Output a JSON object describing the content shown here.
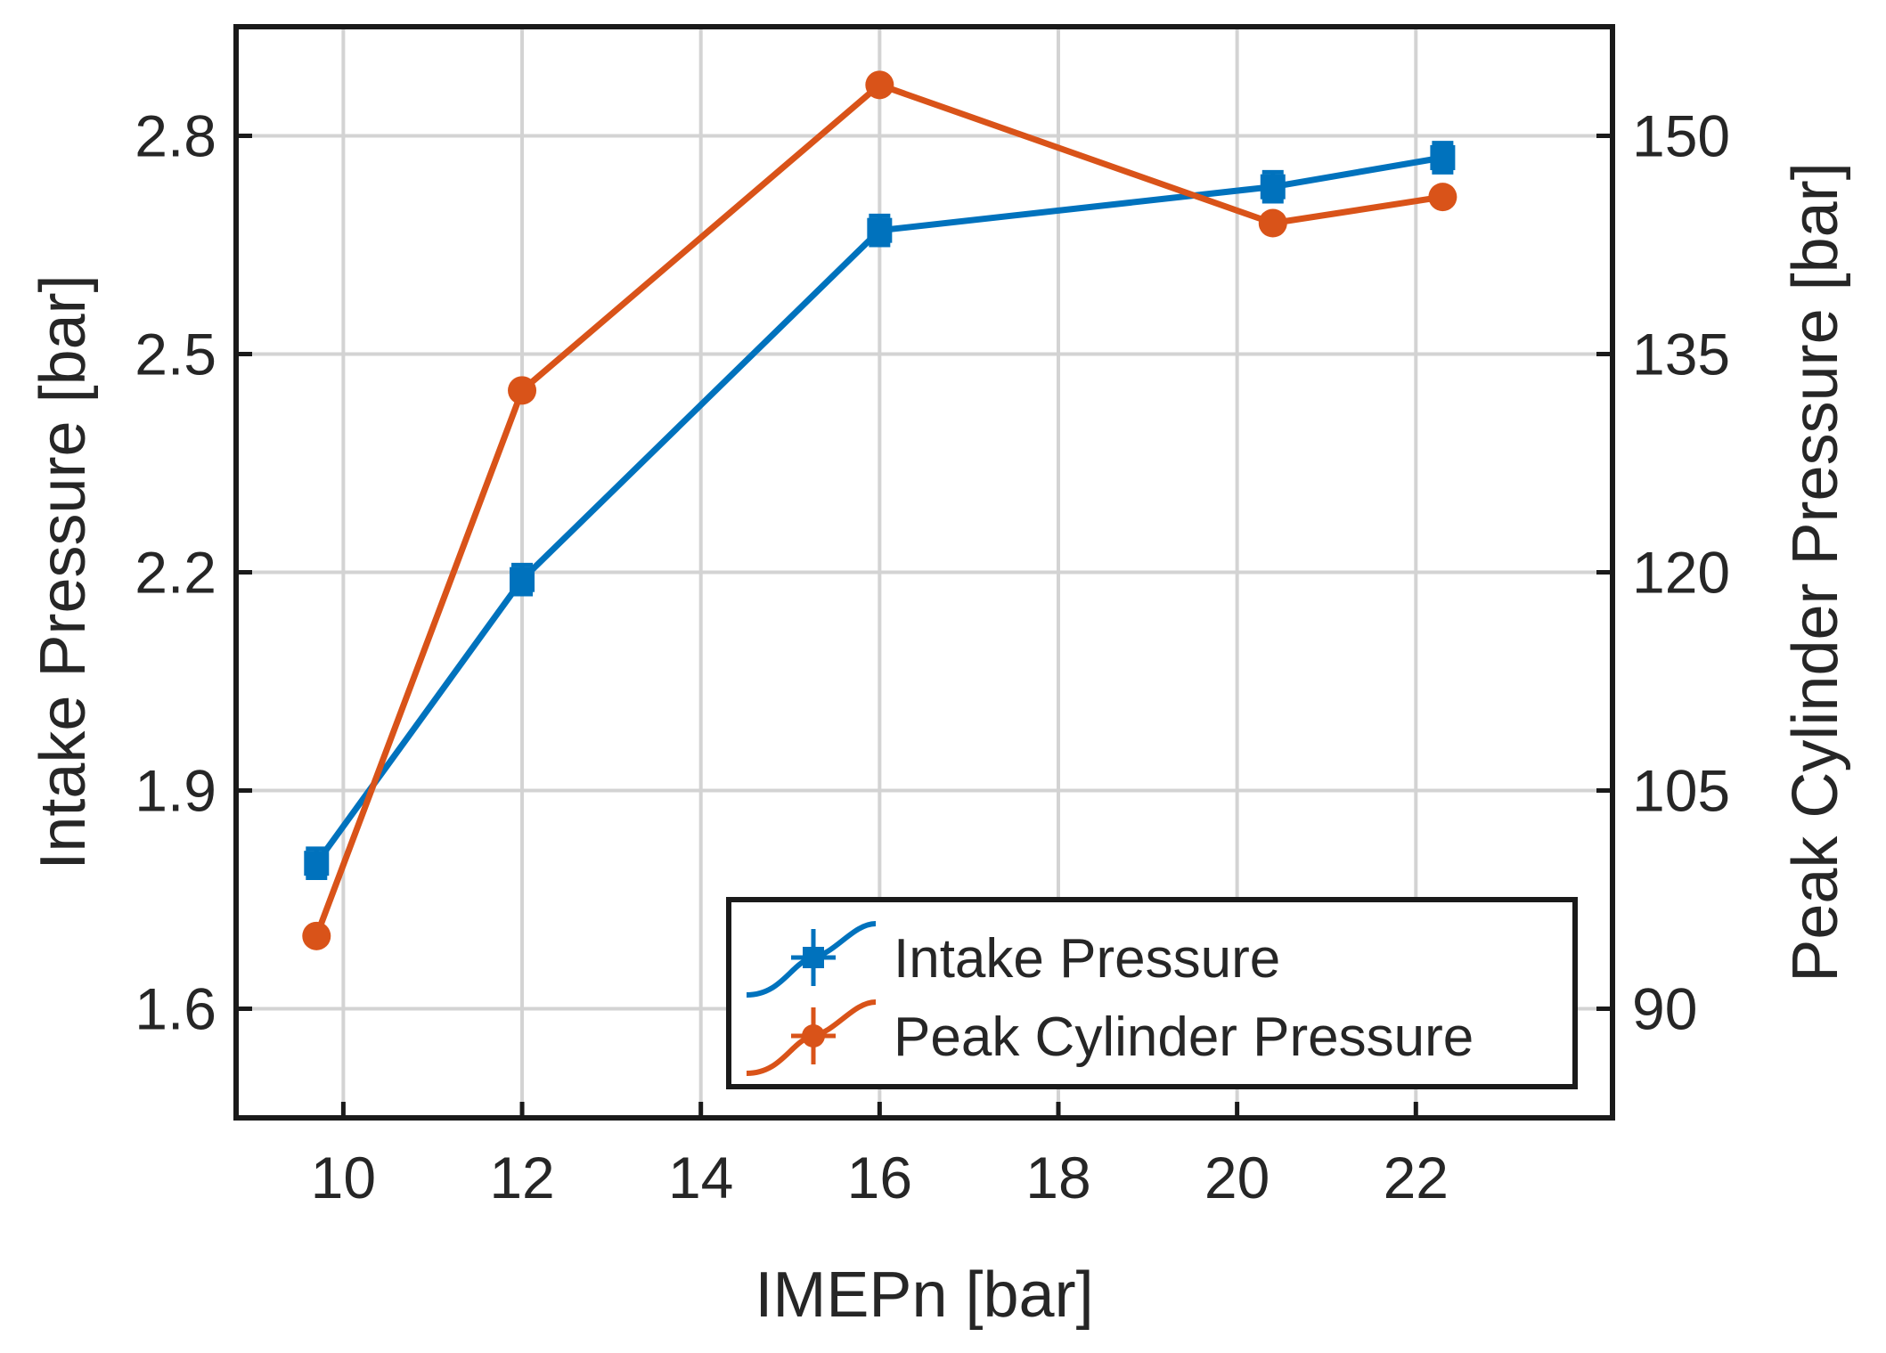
{
  "chart_data": {
    "type": "line",
    "title": "",
    "xlabel": "IMEPn [bar]",
    "ylabel_left": "Intake Pressure [bar]",
    "ylabel_right": "Peak Cylinder Pressure [bar]",
    "xlim": [
      8.8,
      24.2
    ],
    "ylim_left": [
      1.45,
      2.95
    ],
    "ylim_right": [
      82.5,
      157.5
    ],
    "x_ticks": [
      10,
      12,
      14,
      16,
      18,
      20,
      22
    ],
    "y_left_ticks": [
      1.6,
      1.9,
      2.2,
      2.5,
      2.8
    ],
    "y_right_ticks": [
      90,
      105,
      120,
      135,
      150
    ],
    "y_left_tick_labels": [
      "1.6",
      "1.9",
      "2.2",
      "2.5",
      "2.8"
    ],
    "x_tick_labels": [
      "10",
      "12",
      "14",
      "16",
      "18",
      "20",
      "22"
    ],
    "y_right_tick_labels": [
      "90",
      "105",
      "120",
      "135",
      "150"
    ],
    "grid": true,
    "legend_position": "bottom-right",
    "series": [
      {
        "name": "Intake Pressure",
        "axis": "left",
        "color": "#0072BD",
        "marker": "square",
        "x": [
          9.7,
          12.0,
          16.0,
          20.4,
          22.3
        ],
        "values": [
          1.8,
          2.19,
          2.67,
          2.73,
          2.77
        ],
        "y_error": [
          0.02,
          0.02,
          0.02,
          0.02,
          0.02
        ],
        "x_error": [
          0.1,
          0.1,
          0.1,
          0.1,
          0.1
        ]
      },
      {
        "name": "Peak Cylinder Pressure",
        "axis": "right",
        "color": "#D95319",
        "marker": "circle",
        "x": [
          9.7,
          12.0,
          16.0,
          20.4,
          22.3
        ],
        "values": [
          95.0,
          132.5,
          153.5,
          144.0,
          145.8
        ],
        "y_error": [
          0.3,
          0.3,
          0.3,
          0.3,
          0.3
        ],
        "x_error": [
          0.05,
          0.05,
          0.05,
          0.05,
          0.05
        ]
      }
    ]
  }
}
